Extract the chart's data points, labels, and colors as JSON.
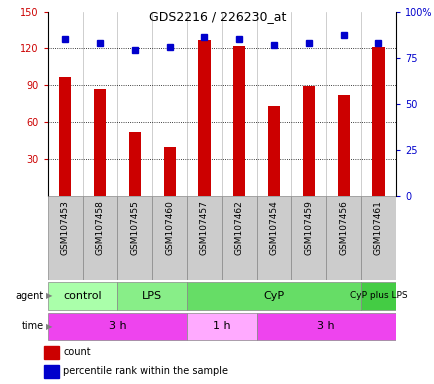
{
  "title": "GDS2216 / 226230_at",
  "samples": [
    "GSM107453",
    "GSM107458",
    "GSM107455",
    "GSM107460",
    "GSM107457",
    "GSM107462",
    "GSM107454",
    "GSM107459",
    "GSM107456",
    "GSM107461"
  ],
  "counts": [
    97,
    87,
    52,
    40,
    127,
    122,
    73,
    89,
    82,
    121
  ],
  "percentile_ranks": [
    85,
    83,
    79,
    81,
    86,
    85,
    82,
    83,
    87,
    83
  ],
  "ylim_left": [
    0,
    150
  ],
  "yticks_left": [
    30,
    60,
    90,
    120,
    150
  ],
  "ylim_right": [
    0,
    100
  ],
  "yticks_right": [
    0,
    25,
    50,
    75,
    100
  ],
  "ytick_right_labels": [
    "0",
    "25",
    "50",
    "75",
    "100%"
  ],
  "bar_color": "#cc0000",
  "dot_color": "#0000cc",
  "agent_groups": [
    {
      "label": "control",
      "start": 0,
      "end": 2,
      "color": "#aaffaa"
    },
    {
      "label": "LPS",
      "start": 2,
      "end": 4,
      "color": "#88ee88"
    },
    {
      "label": "CyP",
      "start": 4,
      "end": 9,
      "color": "#66dd66"
    },
    {
      "label": "CyP plus LPS",
      "start": 9,
      "end": 10,
      "color": "#44cc44"
    }
  ],
  "time_groups": [
    {
      "label": "3 h",
      "start": 0,
      "end": 4,
      "color": "#ee44ee"
    },
    {
      "label": "1 h",
      "start": 4,
      "end": 6,
      "color": "#ffaaff"
    },
    {
      "label": "3 h",
      "start": 6,
      "end": 10,
      "color": "#ee44ee"
    }
  ],
  "agent_label": "agent",
  "time_label": "time",
  "legend_count_color": "#cc0000",
  "legend_pct_color": "#0000cc",
  "background_color": "#ffffff",
  "sample_bg_color": "#cccccc",
  "dotted_line_color": "#000000"
}
